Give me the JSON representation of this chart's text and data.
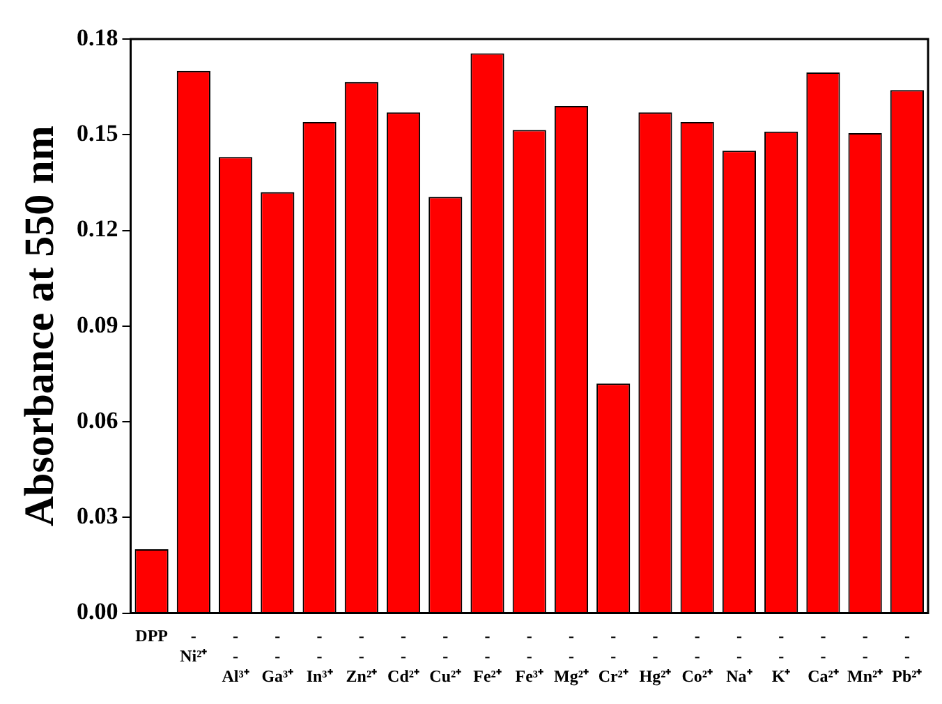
{
  "chart_data": {
    "type": "bar",
    "ylabel": "Absorbance at 550 nm",
    "categories": [
      "DPP",
      "-\nNi²⁺",
      "-\n-\nAl³⁺",
      "-\n-\nGa³⁺",
      "-\n-\nIn³⁺",
      "-\n-\nZn²⁺",
      "-\n-\nCd²⁺",
      "-\n-\nCu²⁺",
      "-\n-\nFe²⁺",
      "-\n-\nFe³⁺",
      "-\n-\nMg²⁺",
      "-\n-\nCr²⁺",
      "-\n-\nHg²⁺",
      "-\n-\nCo²⁺",
      "-\n-\nNa⁺",
      "-\n-\nK⁺",
      "-\n-\nCa²⁺",
      "-\n-\nMn²⁺",
      "-\n-\nPb²⁺"
    ],
    "values": [
      0.02,
      0.17,
      0.143,
      0.132,
      0.154,
      0.1665,
      0.157,
      0.1305,
      0.1755,
      0.1515,
      0.159,
      0.072,
      0.157,
      0.154,
      0.145,
      0.151,
      0.1695,
      0.1505,
      0.164
    ],
    "color": "#ff0000",
    "ylim": [
      0,
      0.18
    ],
    "yticks": [
      {
        "value": 0,
        "label": "0.00"
      },
      {
        "value": 0.03,
        "label": "0.03"
      },
      {
        "value": 0.06,
        "label": "0.06"
      },
      {
        "value": 0.09,
        "label": "0.09"
      },
      {
        "value": 0.12,
        "label": "0.12"
      },
      {
        "value": 0.15,
        "label": "0.15"
      },
      {
        "value": 0.18,
        "label": "0.18"
      }
    ],
    "grid": false
  }
}
